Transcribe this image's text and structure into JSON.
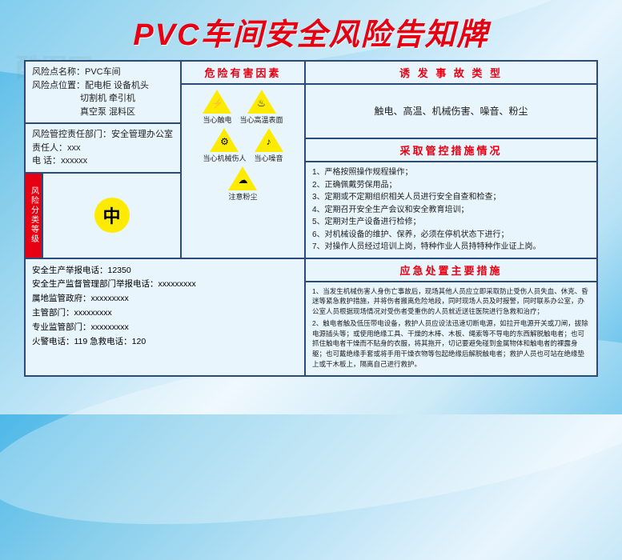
{
  "title": "PVC车间安全风险告知牌",
  "colors": {
    "title": "#e60012",
    "border": "#2a4a7a",
    "panel_bg": "#e8f5fd",
    "risk_label_bg": "#e60012",
    "circle_bg": "#ffeb00",
    "triangle_bg": "#ffeb00",
    "text": "#222222"
  },
  "watermark": {
    "text": "酷图网",
    "url": "www.ikutu.com"
  },
  "left": {
    "block1": {
      "name_label": "风险点名称：",
      "name_value": "PVC车间",
      "loc_label": "风险点位置：",
      "loc_lines": [
        "配电柜  设备机头",
        "切割机  牵引机",
        "真空泵  混料区"
      ]
    },
    "block2": {
      "dept_label": "风险管控责任部门：",
      "dept_value": "安全管理办公室",
      "person_label": "责任人：",
      "person_value": "xxx",
      "phone_label": "电    话：",
      "phone_value": "xxxxxx"
    },
    "risk": {
      "label": "风险分类等级",
      "value": "中"
    }
  },
  "hazard": {
    "head": "危险有害因素",
    "icons": [
      {
        "sym": "⚡",
        "label": "当心触电"
      },
      {
        "sym": "♨",
        "label": "当心高温表面"
      },
      {
        "sym": "⚙",
        "label": "当心机械伤人"
      },
      {
        "sym": "♪",
        "label": "当心噪音"
      },
      {
        "sym": "☁",
        "label": "注意粉尘"
      }
    ]
  },
  "right": {
    "accident": {
      "head": "诱 发 事 故 类 型",
      "body": "触电、高温、机械伤害、噪音、粉尘"
    },
    "control": {
      "head": "采取管控措施情况",
      "items": [
        "1、严格按照操作规程操作；",
        "2、正确佩戴劳保用品；",
        "3、定期或不定期组织相关人员进行安全自查和检查；",
        "4、定期召开安全生产会议和安全教育培训；",
        "5、定期对生产设备进行检修；",
        "6、对机械设备的维护、保养，必须在停机状态下进行；",
        "7、对操作人员经过培训上岗，特种作业人员持特种作业证上岗。"
      ]
    }
  },
  "bottom": {
    "left": {
      "lines": [
        "安全生产举报电话：12350",
        "安全生产监督管理部门举报电话：xxxxxxxxx",
        "属地监管政府：xxxxxxxxx",
        "主管部门：xxxxxxxxx",
        "专业监管部门：xxxxxxxxx",
        "火警电话：119    急救电话：120"
      ]
    },
    "emergency": {
      "head": "应急处置主要措施",
      "items": [
        "1、当发生机械伤害人身伤亡事故后，现场其他人员应立即采取防止受伤人员失血、休克、昏迷等紧急救护措施，并将伤者搬离危险地段，同时现场人员及时报警，同时联系办公室，办公室人员根据现场情况对受伤者受重伤的人员就近送往医院进行急救和治疗；",
        "2、触电者触及低压带电设备，救护人员应设法迅速切断电源，如拉开电源开关或刀闸，拔除电源插头等；或使用绝缘工具、干燥的木棒、木板、绳索等不导电的东西解脱触电者；也可抓住触电者干燥而不贴身的衣服，将其拖开，切记要避免碰到金属物体和触电者的裸露身躯；也可戴绝缘手套或将手用干燥衣物等包起绝缘后解脱触电者；救护人员也可站在绝缘垫上或干木板上，隔离自己进行救护。"
      ]
    }
  }
}
